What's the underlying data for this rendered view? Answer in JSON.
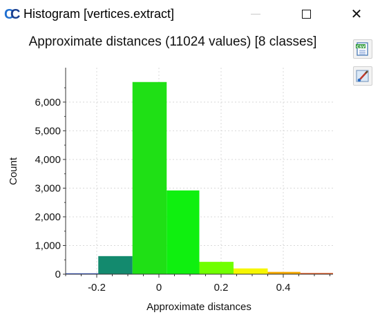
{
  "window": {
    "title": "Histogram [vertices.extract]",
    "app_icon": "cloudcompare-cc-logo-icon",
    "controls": [
      "minimize-icon",
      "maximize-icon",
      "close-icon"
    ],
    "close_glyph": "✕"
  },
  "toolbar": {
    "buttons": [
      {
        "name": "export-csv-button",
        "icon": "csv-file-icon"
      },
      {
        "name": "export-image-button",
        "icon": "paint-brush-icon"
      }
    ]
  },
  "chart_data": {
    "type": "bar",
    "title": "Approximate distances (11024 values) [8 classes]",
    "xlabel": "Approximate distances",
    "ylabel": "Count",
    "xlim": [
      -0.3,
      0.56
    ],
    "ylim": [
      0,
      7200
    ],
    "x_ticks": [
      -0.2,
      0,
      0.2,
      0.4
    ],
    "x_tick_labels": [
      "-0.2",
      "0",
      "0.2",
      "0.4"
    ],
    "y_ticks": [
      0,
      1000,
      2000,
      3000,
      4000,
      5000,
      6000
    ],
    "y_tick_labels": [
      "0",
      "1,000",
      "2,000",
      "3,000",
      "4,000",
      "5,000",
      "6,000"
    ],
    "grid": true,
    "bins": [
      {
        "x0": -0.3,
        "x1": -0.195,
        "count": 30,
        "color": "#2a4fd0"
      },
      {
        "x0": -0.195,
        "x1": -0.085,
        "count": 630,
        "color": "#138a6e"
      },
      {
        "x0": -0.085,
        "x1": 0.025,
        "count": 6700,
        "color": "#1fe015"
      },
      {
        "x0": 0.025,
        "x1": 0.13,
        "count": 2920,
        "color": "#0ff00f"
      },
      {
        "x0": 0.13,
        "x1": 0.24,
        "count": 430,
        "color": "#70ff00"
      },
      {
        "x0": 0.24,
        "x1": 0.35,
        "count": 200,
        "color": "#f6f600"
      },
      {
        "x0": 0.35,
        "x1": 0.455,
        "count": 80,
        "color": "#f5a800"
      },
      {
        "x0": 0.455,
        "x1": 0.56,
        "count": 40,
        "color": "#e8541a"
      }
    ]
  }
}
